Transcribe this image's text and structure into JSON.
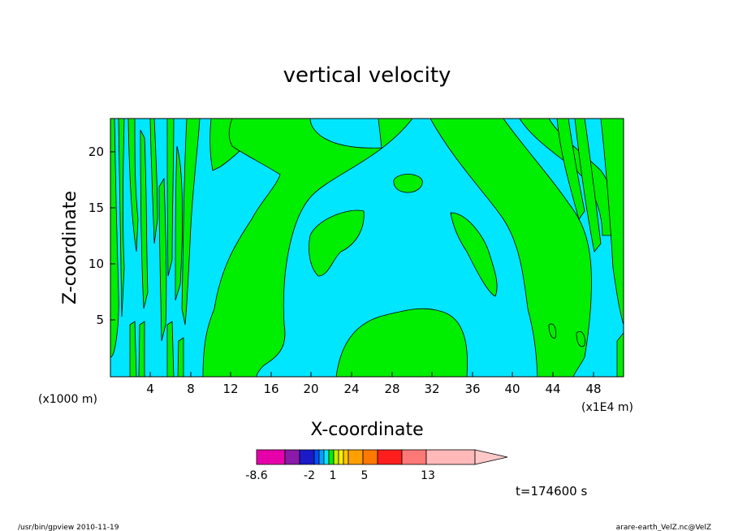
{
  "chart_data": {
    "type": "heatmap",
    "title": "vertical velocity",
    "xlabel": "X-coordinate",
    "ylabel": "Z-coordinate",
    "x_unit_left": "(x1000 m)",
    "x_unit_right": "(x1E4 m)",
    "xlim": [
      0,
      51
    ],
    "ylim": [
      0,
      23
    ],
    "x_ticks": [
      "4",
      "8",
      "12",
      "16",
      "20",
      "24",
      "28",
      "32",
      "36",
      "40",
      "44",
      "48"
    ],
    "y_ticks": [
      "5",
      "10",
      "15",
      "20"
    ],
    "x_tick_values": [
      4,
      8,
      12,
      16,
      20,
      24,
      28,
      32,
      36,
      40,
      44,
      48
    ],
    "y_tick_values": [
      5,
      10,
      15,
      20
    ],
    "colors": {
      "background_field": "#00e6ff",
      "positive_field": "#00ee00"
    },
    "colorbar": {
      "labels": [
        "-8.6",
        "-2",
        "1",
        "5",
        "13"
      ],
      "colors": [
        "#e600aa",
        "#8a1aaa",
        "#1a1ac8",
        "#0050ff",
        "#00a0ff",
        "#00e6ff",
        "#00ee00",
        "#c8ee00",
        "#ffee00",
        "#ffc800",
        "#ffa000",
        "#ff7800",
        "#ff1e1e",
        "#ff7878",
        "#ffb9b9",
        "#ffc8c8"
      ]
    },
    "time_label": "t=174600 s"
  },
  "footer": {
    "left": "/usr/bin/gpview   2010-11-19",
    "right": "arare-earth_VelZ.nc@VelZ"
  }
}
